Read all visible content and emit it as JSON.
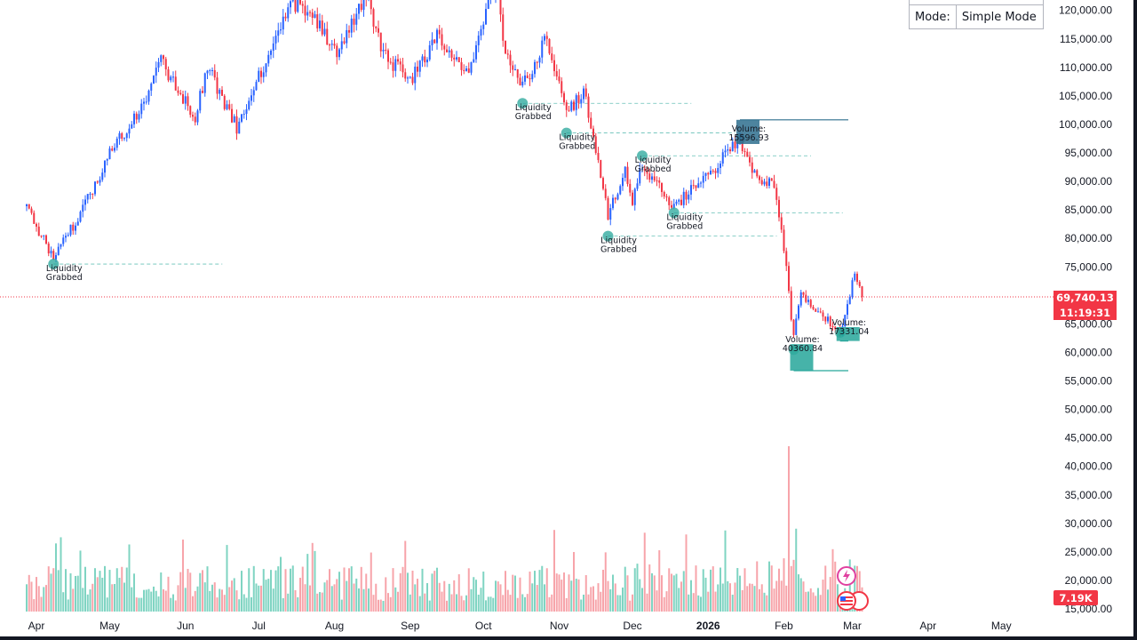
{
  "chart_data": {
    "type": "candlestick",
    "title": "",
    "y_axis": {
      "ticks": [
        "120,000.00",
        "115,000.00",
        "110,000.00",
        "105,000.00",
        "100,000.00",
        "95,000.00",
        "90,000.00",
        "85,000.00",
        "80,000.00",
        "75,000.00",
        "65,000.00",
        "60,000.00",
        "55,000.00",
        "50,000.00",
        "45,000.00",
        "40,000.00",
        "35,000.00",
        "30,000.00",
        "25,000.00",
        "20,000.00",
        "15,000.00"
      ],
      "range": [
        15000,
        122000
      ]
    },
    "x_axis": {
      "ticks": [
        "Apr",
        "May",
        "Jun",
        "Jul",
        "Aug",
        "Sep",
        "Oct",
        "Nov",
        "Dec",
        "2026",
        "Feb",
        "Mar",
        "Apr",
        "May"
      ]
    },
    "colors": {
      "up": "#2962ff",
      "down": "#f23645",
      "vol_up": "#7fd4c2",
      "vol_down": "#f7a4aa",
      "liq": "#26a69a",
      "vol_box_high": "#2e6e8e",
      "vol_box_low": "#26a69a"
    },
    "price_anchors": [
      [
        "2025-03-27",
        86000
      ],
      [
        "2025-04-08",
        76500
      ],
      [
        "2025-04-20",
        85000
      ],
      [
        "2025-05-01",
        95000
      ],
      [
        "2025-05-15",
        103500
      ],
      [
        "2025-05-22",
        111000
      ],
      [
        "2025-06-05",
        101500
      ],
      [
        "2025-06-10",
        110000
      ],
      [
        "2025-06-22",
        99500
      ],
      [
        "2025-06-30",
        107500
      ],
      [
        "2025-07-10",
        117000
      ],
      [
        "2025-07-14",
        122000
      ],
      [
        "2025-07-25",
        117500
      ],
      [
        "2025-08-03",
        112500
      ],
      [
        "2025-08-14",
        123500
      ],
      [
        "2025-08-20",
        113000
      ],
      [
        "2025-09-01",
        107500
      ],
      [
        "2025-09-12",
        115500
      ],
      [
        "2025-09-25",
        109000
      ],
      [
        "2025-10-06",
        125000
      ],
      [
        "2025-10-10",
        113000
      ],
      [
        "2025-10-17",
        106500
      ],
      [
        "2025-10-27",
        115500
      ],
      [
        "2025-11-04",
        101500
      ],
      [
        "2025-11-11",
        106000
      ],
      [
        "2025-11-21",
        84000
      ],
      [
        "2025-11-28",
        91500
      ],
      [
        "2025-12-01",
        86000
      ],
      [
        "2025-12-05",
        93000
      ],
      [
        "2025-12-18",
        85500
      ],
      [
        "2026-01-05",
        93000
      ],
      [
        "2026-01-14",
        97500
      ],
      [
        "2026-01-20",
        91000
      ],
      [
        "2026-01-28",
        89500
      ],
      [
        "2026-02-01",
        78500
      ],
      [
        "2026-02-05",
        62500
      ],
      [
        "2026-02-08",
        70500
      ],
      [
        "2026-02-24",
        63500
      ],
      [
        "2026-03-02",
        73500
      ],
      [
        "2026-03-05",
        69740
      ]
    ],
    "annotations": [
      {
        "text": [
          "Liquidity",
          "Grabbed"
        ],
        "date": "2025-04-08",
        "price": 75500
      },
      {
        "text": [
          "Liquidity",
          "Grabbed"
        ],
        "date": "2025-10-17",
        "price": 103700
      },
      {
        "text": [
          "Liquidity",
          "Grabbed"
        ],
        "date": "2025-11-04",
        "price": 98500
      },
      {
        "text": [
          "Liquidity",
          "Grabbed"
        ],
        "date": "2025-11-21",
        "price": 80400
      },
      {
        "text": [
          "Liquidity",
          "Grabbed"
        ],
        "date": "2025-12-05",
        "price": 94500
      },
      {
        "text": [
          "Liquidity",
          "Grabbed"
        ],
        "date": "2025-12-18",
        "price": 84500
      }
    ],
    "volume_boxes": [
      {
        "label": "Volume:",
        "value": "15596.93",
        "date": "2026-01-14",
        "price": 97500,
        "level": 100800,
        "kind": "high"
      },
      {
        "label": "Volume:",
        "value": "40360.84",
        "date": "2026-02-05",
        "price": 60500,
        "level": 56800,
        "kind": "low"
      },
      {
        "label": "Volume:",
        "value": "17331.04",
        "date": "2026-02-24",
        "price": 63500,
        "level": 62000,
        "kind": "low"
      }
    ]
  },
  "mode_box": {
    "key": "Mode:",
    "value": "Simple Mode"
  },
  "price_tag": {
    "price": "69,740.13",
    "countdown": "11:19:31"
  },
  "volume_tag": "7.19K"
}
